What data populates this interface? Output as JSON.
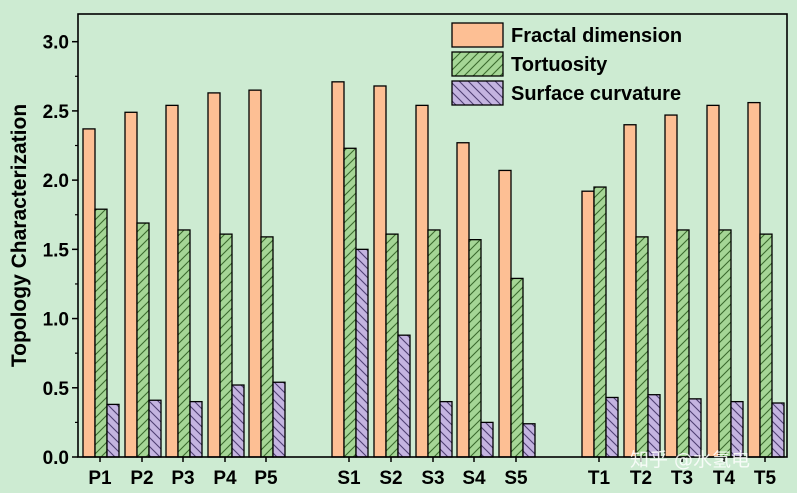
{
  "chart_data": {
    "type": "bar",
    "ylabel": "Topology Characterization",
    "xlabel": "",
    "ylim": [
      0,
      3.2
    ],
    "yticks": [
      "0.0",
      "0.5",
      "1.0",
      "1.5",
      "2.0",
      "2.5",
      "3.0"
    ],
    "groups": [
      [
        "P1",
        "P2",
        "P3",
        "P4",
        "P5"
      ],
      [
        "S1",
        "S2",
        "S3",
        "S4",
        "S5"
      ],
      [
        "T1",
        "T2",
        "T3",
        "T4",
        "T5"
      ]
    ],
    "categories": [
      "P1",
      "P2",
      "P3",
      "P4",
      "P5",
      "S1",
      "S2",
      "S3",
      "S4",
      "S5",
      "T1",
      "T2",
      "T3",
      "T4",
      "T5"
    ],
    "series": [
      {
        "name": "Fractal dimension",
        "color": "#fdbf94",
        "pattern": "solid",
        "values": [
          2.37,
          2.49,
          2.54,
          2.63,
          2.65,
          2.71,
          2.68,
          2.54,
          2.27,
          2.07,
          1.92,
          2.4,
          2.47,
          2.54,
          2.56
        ]
      },
      {
        "name": "Tortuosity",
        "color": "#a5d696",
        "pattern": "hatch-forward",
        "values": [
          1.79,
          1.69,
          1.64,
          1.61,
          1.59,
          2.23,
          1.61,
          1.64,
          1.57,
          1.29,
          1.95,
          1.59,
          1.64,
          1.64,
          1.61
        ]
      },
      {
        "name": "Surface curvature",
        "color": "#c4b4e0",
        "pattern": "hatch-back",
        "values": [
          0.38,
          0.41,
          0.4,
          0.52,
          0.54,
          1.5,
          0.88,
          0.4,
          0.25,
          0.24,
          0.43,
          0.45,
          0.42,
          0.4,
          0.39
        ]
      }
    ],
    "legend_position": "top-right",
    "grid": false
  },
  "watermark": {
    "text": "知乎 @水氢电"
  }
}
